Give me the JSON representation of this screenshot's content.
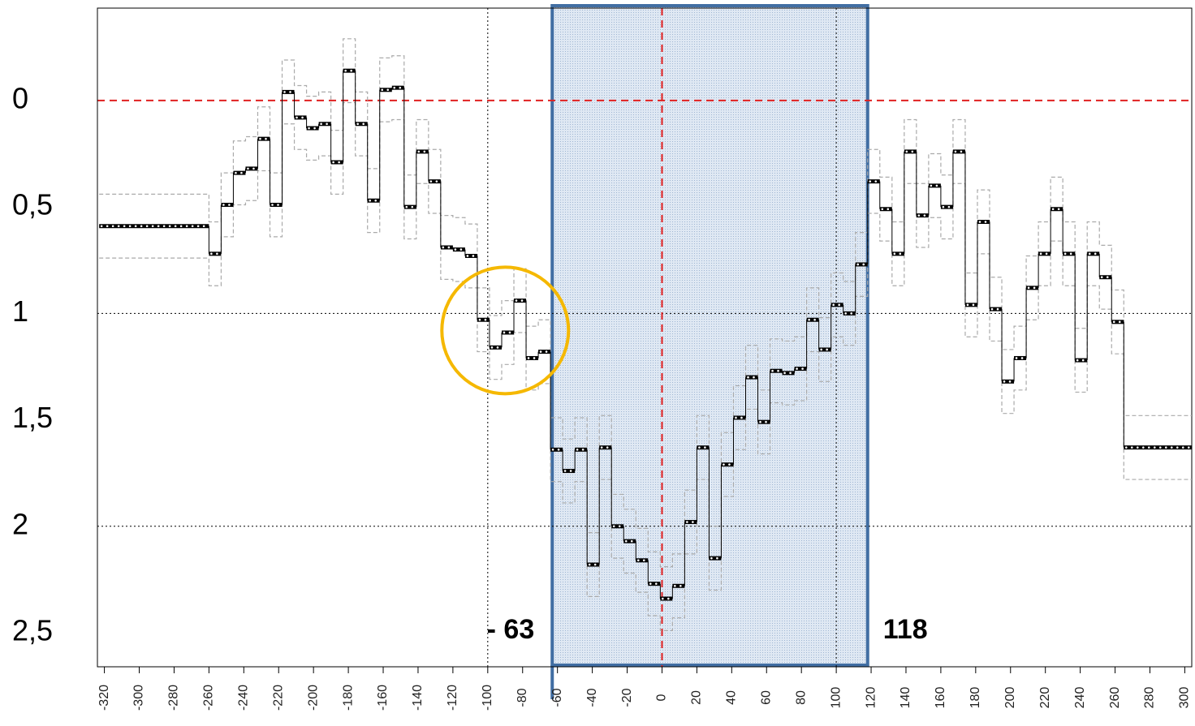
{
  "chart_data": {
    "type": "step",
    "x": [
      -323,
      -260,
      -253,
      -246,
      -239,
      -232,
      -225,
      -218,
      -211,
      -204,
      -197,
      -190,
      -183,
      -176,
      -169,
      -162,
      -155,
      -148,
      -141,
      -134,
      -127,
      -120,
      -113,
      -106,
      -99,
      -92,
      -85,
      -78,
      -71,
      -64,
      -57,
      -50,
      -43,
      -36,
      -29,
      -22,
      -15,
      -8,
      -1,
      6,
      13,
      20,
      27,
      34,
      41,
      48,
      55,
      62,
      69,
      76,
      83,
      90,
      97,
      104,
      111,
      118,
      125,
      132,
      139,
      146,
      153,
      160,
      167,
      174,
      181,
      188,
      195,
      202,
      209,
      216,
      223,
      230,
      237,
      244,
      251,
      258,
      265
    ],
    "values": [
      0.59,
      0.72,
      0.49,
      0.34,
      0.32,
      0.18,
      0.49,
      -0.04,
      0.08,
      0.13,
      0.11,
      0.29,
      -0.14,
      0.11,
      0.47,
      -0.05,
      -0.06,
      0.5,
      0.24,
      0.38,
      0.69,
      0.7,
      0.73,
      1.03,
      1.16,
      1.09,
      0.94,
      1.21,
      1.18,
      1.64,
      1.74,
      1.64,
      2.18,
      1.63,
      2.0,
      2.07,
      2.16,
      2.27,
      2.34,
      2.28,
      1.98,
      1.63,
      2.15,
      1.71,
      1.49,
      1.3,
      1.51,
      1.27,
      1.28,
      1.26,
      1.03,
      1.17,
      0.96,
      1.0,
      0.77,
      0.38,
      0.51,
      0.72,
      0.24,
      0.54,
      0.4,
      0.5,
      0.24,
      0.96,
      0.57,
      0.98,
      1.32,
      1.21,
      0.88,
      0.72,
      0.51,
      0.72,
      1.22,
      0.72,
      0.83,
      1.04,
      1.63
    ],
    "color": "#000000",
    "ci_halfwidth": 0.15,
    "ci_color": "#aaaaaa",
    "xlim": [
      -324,
      304
    ],
    "ylim": [
      2.66,
      -0.434
    ],
    "xticks": [
      -320,
      -300,
      -280,
      -260,
      -240,
      -220,
      -200,
      -180,
      -160,
      -140,
      -120,
      -100,
      -80,
      -60,
      -40,
      -20,
      0,
      20,
      40,
      60,
      80,
      100,
      120,
      140,
      160,
      180,
      200,
      220,
      240,
      260,
      280,
      300
    ],
    "yticks": [
      0,
      {
        "value": 0.5,
        "label": "0,5"
      },
      1,
      {
        "value": 1.5,
        "label": "1,5"
      },
      2,
      {
        "value": 2.5,
        "label": "2,5"
      }
    ],
    "hlines": [
      {
        "value": 0,
        "color": "#e02020",
        "style": "dashed"
      },
      {
        "value": 1,
        "color": "#000000",
        "style": "dotted"
      },
      {
        "value": 2,
        "color": "#000000",
        "style": "dotted"
      }
    ],
    "vlines": [
      {
        "value": 0,
        "color": "#e02020",
        "style": "dashed"
      },
      {
        "value": -100,
        "color": "#000000",
        "style": "dotted"
      },
      {
        "value": 100,
        "color": "#000000",
        "style": "dotted"
      }
    ],
    "shaded_range": [
      -63,
      118
    ],
    "shaded_color": "#c9d8ec",
    "shaded_border": "#416ea3",
    "annotations": [
      {
        "text": "- 63"
      },
      {
        "text": "118"
      }
    ],
    "highlight": {
      "x": -90,
      "y": 1.08,
      "color": "#f5b800"
    }
  }
}
